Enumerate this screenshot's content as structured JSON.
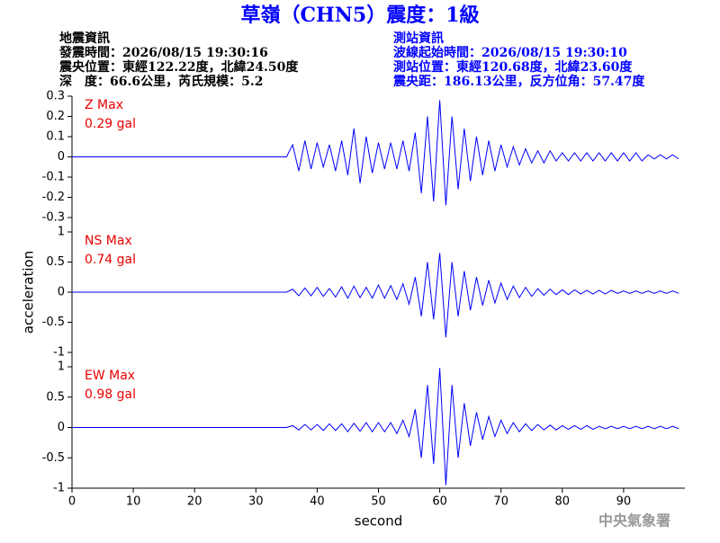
{
  "header": {
    "title": "草嶺（CHN5）震度：1級",
    "left": [
      "地震資訊",
      "發震時間：2026/08/15 19:30:16",
      "震央位置：東經122.22度，北緯24.50度",
      "深　度：66.6公里，芮氏規模：5.2"
    ],
    "right": [
      "測站資訊",
      "波線起始時間：2026/08/15 19:30:10",
      "測站位置：東經120.68度，北緯23.60度",
      "震央距：186.13公里，反方位角：57.47度"
    ],
    "footer": "中央氣象署"
  },
  "chart_data": [
    {
      "type": "line",
      "annotations": [
        "Z Max",
        "0.29 gal"
      ],
      "color": "#0000ff",
      "xlim": [
        0,
        100
      ],
      "ylim": [
        -0.3,
        0.3
      ],
      "yticks": [
        0.3,
        0.2,
        0.1,
        0,
        -0.1,
        -0.2,
        -0.3
      ],
      "x": [
        0,
        10,
        20,
        30,
        35,
        36,
        37,
        38,
        39,
        40,
        41,
        42,
        43,
        44,
        45,
        46,
        47,
        48,
        49,
        50,
        51,
        52,
        53,
        54,
        55,
        56,
        57,
        58,
        59,
        60,
        61,
        62,
        63,
        64,
        65,
        66,
        67,
        68,
        69,
        70,
        71,
        72,
        73,
        74,
        75,
        76,
        77,
        78,
        79,
        80,
        81,
        82,
        83,
        84,
        85,
        86,
        87,
        88,
        89,
        90,
        91,
        92,
        93,
        94,
        95,
        96,
        97,
        98,
        99
      ],
      "values": [
        0,
        0,
        0,
        0,
        0,
        0.06,
        -0.07,
        0.08,
        -0.06,
        0.07,
        -0.05,
        0.06,
        -0.07,
        0.08,
        -0.09,
        0.14,
        -0.13,
        0.1,
        -0.08,
        0.07,
        -0.06,
        0.07,
        -0.06,
        0.08,
        -0.07,
        0.12,
        -0.18,
        0.2,
        -0.22,
        0.28,
        -0.24,
        0.2,
        -0.16,
        0.14,
        -0.12,
        0.1,
        -0.09,
        0.08,
        -0.07,
        0.06,
        -0.05,
        0.05,
        -0.04,
        0.04,
        -0.03,
        0.03,
        -0.03,
        0.03,
        -0.02,
        0.02,
        -0.02,
        0.02,
        -0.02,
        0.02,
        -0.02,
        0.02,
        -0.02,
        0.02,
        -0.02,
        0.02,
        -0.02,
        0.02,
        -0.02,
        0.01,
        -0.01,
        0.01,
        -0.01,
        0.01,
        -0.01
      ]
    },
    {
      "type": "line",
      "annotations": [
        "NS Max",
        "0.74 gal"
      ],
      "color": "#0000ff",
      "ylabel": "acceleration",
      "xlim": [
        0,
        100
      ],
      "ylim": [
        -1,
        1
      ],
      "yticks": [
        1,
        0.5,
        0,
        -0.5,
        -1
      ],
      "x": [
        0,
        10,
        20,
        30,
        35,
        36,
        37,
        38,
        39,
        40,
        41,
        42,
        43,
        44,
        45,
        46,
        47,
        48,
        49,
        50,
        51,
        52,
        53,
        54,
        55,
        56,
        57,
        58,
        59,
        60,
        61,
        62,
        63,
        64,
        65,
        66,
        67,
        68,
        69,
        70,
        71,
        72,
        73,
        74,
        75,
        76,
        77,
        78,
        79,
        80,
        81,
        82,
        83,
        84,
        85,
        86,
        87,
        88,
        89,
        90,
        91,
        92,
        93,
        94,
        95,
        96,
        97,
        98,
        99
      ],
      "values": [
        0,
        0,
        0,
        0,
        0,
        0.05,
        -0.06,
        0.07,
        -0.06,
        0.08,
        -0.07,
        0.06,
        -0.08,
        0.09,
        -0.1,
        0.1,
        -0.09,
        0.08,
        -0.1,
        0.12,
        -0.1,
        0.11,
        -0.12,
        0.14,
        -0.2,
        0.25,
        -0.4,
        0.5,
        -0.45,
        0.65,
        -0.75,
        0.5,
        -0.4,
        0.35,
        -0.3,
        0.25,
        -0.22,
        0.2,
        -0.18,
        0.15,
        -0.12,
        0.1,
        -0.09,
        0.08,
        -0.07,
        0.06,
        -0.05,
        0.05,
        -0.04,
        0.04,
        -0.04,
        0.04,
        -0.03,
        0.03,
        -0.03,
        0.03,
        -0.03,
        0.03,
        -0.02,
        0.02,
        -0.02,
        0.02,
        -0.02,
        0.02,
        -0.02,
        0.02,
        -0.02,
        0.02,
        -0.02
      ]
    },
    {
      "type": "line",
      "annotations": [
        "EW Max",
        "0.98 gal"
      ],
      "color": "#0000ff",
      "xlabel": "second",
      "xlim": [
        0,
        100
      ],
      "xticks": [
        0,
        10,
        20,
        30,
        40,
        50,
        60,
        70,
        80,
        90
      ],
      "ylim": [
        -1,
        1
      ],
      "yticks": [
        1,
        0.5,
        0,
        -0.5,
        -1
      ],
      "x": [
        0,
        10,
        20,
        30,
        35,
        36,
        37,
        38,
        39,
        40,
        41,
        42,
        43,
        44,
        45,
        46,
        47,
        48,
        49,
        50,
        51,
        52,
        53,
        54,
        55,
        56,
        57,
        58,
        59,
        60,
        61,
        62,
        63,
        64,
        65,
        66,
        67,
        68,
        69,
        70,
        71,
        72,
        73,
        74,
        75,
        76,
        77,
        78,
        79,
        80,
        81,
        82,
        83,
        84,
        85,
        86,
        87,
        88,
        89,
        90,
        91,
        92,
        93,
        94,
        95,
        96,
        97,
        98,
        99
      ],
      "values": [
        0,
        0,
        0,
        0,
        0,
        0.03,
        -0.04,
        0.05,
        -0.04,
        0.05,
        -0.05,
        0.06,
        -0.05,
        0.06,
        -0.07,
        0.07,
        -0.06,
        0.08,
        -0.07,
        0.08,
        -0.07,
        0.08,
        -0.1,
        0.12,
        -0.15,
        0.3,
        -0.5,
        0.7,
        -0.6,
        0.98,
        -0.95,
        0.7,
        -0.5,
        0.4,
        -0.3,
        0.25,
        -0.2,
        0.18,
        -0.15,
        0.12,
        -0.1,
        0.08,
        -0.07,
        0.06,
        -0.05,
        0.05,
        -0.04,
        0.04,
        -0.04,
        0.03,
        -0.03,
        0.03,
        -0.03,
        0.03,
        -0.03,
        0.02,
        -0.02,
        0.02,
        -0.02,
        0.02,
        -0.02,
        0.02,
        -0.02,
        0.02,
        -0.02,
        0.02,
        -0.02,
        0.02,
        -0.02
      ]
    }
  ]
}
